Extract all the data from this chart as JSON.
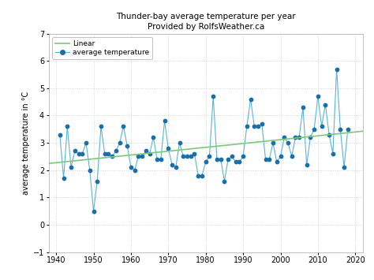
{
  "title_line1": "Thunder-bay average temperature per year",
  "title_line2": "Provided by RolfsWeather.ca",
  "ylabel": "average temperature in °C",
  "years": [
    1941,
    1942,
    1943,
    1944,
    1945,
    1946,
    1947,
    1948,
    1949,
    1950,
    1951,
    1952,
    1953,
    1954,
    1955,
    1956,
    1957,
    1958,
    1959,
    1960,
    1961,
    1962,
    1963,
    1964,
    1965,
    1966,
    1967,
    1968,
    1969,
    1970,
    1971,
    1972,
    1973,
    1974,
    1975,
    1976,
    1977,
    1978,
    1979,
    1980,
    1981,
    1982,
    1983,
    1984,
    1985,
    1986,
    1987,
    1988,
    1989,
    1990,
    1991,
    1992,
    1993,
    1994,
    1995,
    1996,
    1997,
    1998,
    1999,
    2000,
    2001,
    2002,
    2003,
    2004,
    2005,
    2006,
    2007,
    2008,
    2009,
    2010,
    2011,
    2012,
    2013,
    2014,
    2015,
    2016,
    2017,
    2018
  ],
  "temps": [
    3.3,
    1.7,
    3.6,
    2.1,
    2.7,
    2.6,
    2.6,
    3.0,
    2.0,
    0.5,
    1.6,
    3.6,
    2.6,
    2.6,
    2.5,
    2.7,
    3.0,
    3.6,
    2.9,
    2.1,
    2.0,
    2.5,
    2.5,
    2.7,
    2.6,
    3.2,
    2.4,
    2.4,
    3.8,
    2.8,
    2.2,
    2.1,
    3.0,
    2.5,
    2.5,
    2.5,
    2.6,
    1.8,
    1.8,
    2.3,
    2.5,
    4.7,
    2.4,
    2.4,
    1.6,
    2.4,
    2.5,
    2.3,
    2.3,
    2.5,
    3.6,
    4.6,
    3.6,
    3.6,
    3.7,
    2.4,
    2.4,
    3.0,
    2.3,
    2.5,
    3.2,
    3.0,
    2.5,
    3.2,
    3.2,
    4.3,
    2.2,
    3.2,
    3.5,
    4.7,
    3.6,
    4.4,
    3.3,
    2.6,
    5.7,
    3.5,
    2.1,
    3.5
  ],
  "xlim": [
    1938,
    2022
  ],
  "ylim": [
    -1,
    7
  ],
  "yticks": [
    -1,
    0,
    1,
    2,
    3,
    4,
    5,
    6,
    7
  ],
  "xticks": [
    1940,
    1950,
    1960,
    1970,
    1980,
    1990,
    2000,
    2010,
    2020
  ],
  "line_color": "#5ab4db",
  "dot_color": "#1a6fa8",
  "linear_color": "#7dc87d",
  "bg_color": "#ffffff",
  "grid_color": "#cccccc",
  "title_fontsize": 7.5,
  "label_fontsize": 7,
  "tick_fontsize": 7,
  "legend_fontsize": 6.5
}
